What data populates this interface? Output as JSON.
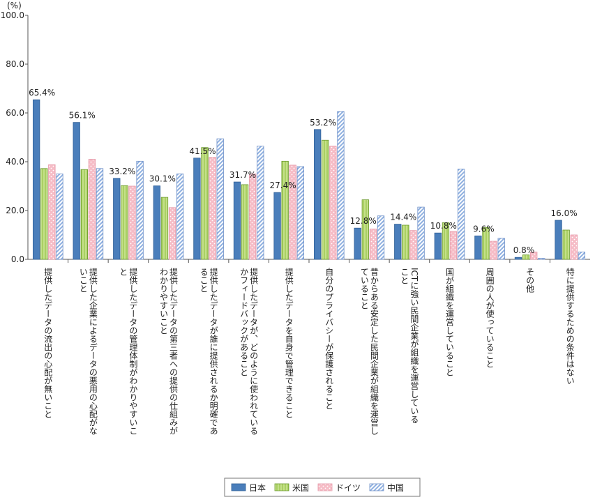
{
  "chart_data": {
    "type": "bar",
    "unit_label": "(%)",
    "ylim": [
      0,
      100
    ],
    "yticks": [
      "0.0",
      "20.0",
      "40.0",
      "60.0",
      "80.0",
      "100.0"
    ],
    "categories": [
      "提供したデータの流出の心配が無いこと",
      "提供した企業によるデータの悪用の心配がないこと",
      "提供したデータの管理体制がわかりやすいこと",
      "提供したデータの第三者への提供の仕組みがわかりやすいこと",
      "提供したデータが誰に提供されるか明確であること",
      "提供したデータが、どのように使われているかフィードバックがあること",
      "提供したデータを自身で管理できること",
      "自分のプライバシーが保護されること",
      "昔からある安定した民間企業が組織を運営していること",
      "ICTに強い民間企業が組織を運営していること",
      "国が組織を運営していること",
      "周囲の人が使っていること",
      "その他",
      "特に提供するための条件はない"
    ],
    "series": [
      {
        "name": "日本",
        "color": "#4a7ebb",
        "values": [
          65.4,
          56.1,
          33.2,
          30.1,
          41.5,
          31.7,
          27.4,
          53.2,
          12.8,
          14.4,
          10.8,
          9.6,
          0.8,
          16.0
        ]
      },
      {
        "name": "米国",
        "color": "#c4e08a",
        "values": [
          37.2,
          36.8,
          30.2,
          25.4,
          45.8,
          30.6,
          40.2,
          48.8,
          24.4,
          14.0,
          15.0,
          13.0,
          1.8,
          12.0
        ]
      },
      {
        "name": "ドイツ",
        "color": "#f6bcc6",
        "values": [
          38.8,
          41.0,
          30.0,
          21.2,
          41.8,
          35.0,
          38.6,
          46.4,
          12.4,
          11.8,
          11.4,
          7.4,
          3.0,
          10.0
        ]
      },
      {
        "name": "中国",
        "color": "#a9c0e6",
        "values": [
          35.0,
          37.2,
          40.2,
          35.0,
          49.4,
          46.4,
          38.0,
          60.6,
          17.8,
          21.4,
          37.0,
          8.6,
          0.4,
          3.0
        ]
      }
    ],
    "data_labels": [
      "65.4%",
      "56.1%",
      "33.2%",
      "30.1%",
      "41.5%",
      "31.7%",
      "27.4%",
      "53.2%",
      "12.8%",
      "14.4%",
      "10.8%",
      "9.6%",
      "0.8%",
      "16.0%"
    ],
    "legend_placement": "bottom-center",
    "grid": false
  }
}
